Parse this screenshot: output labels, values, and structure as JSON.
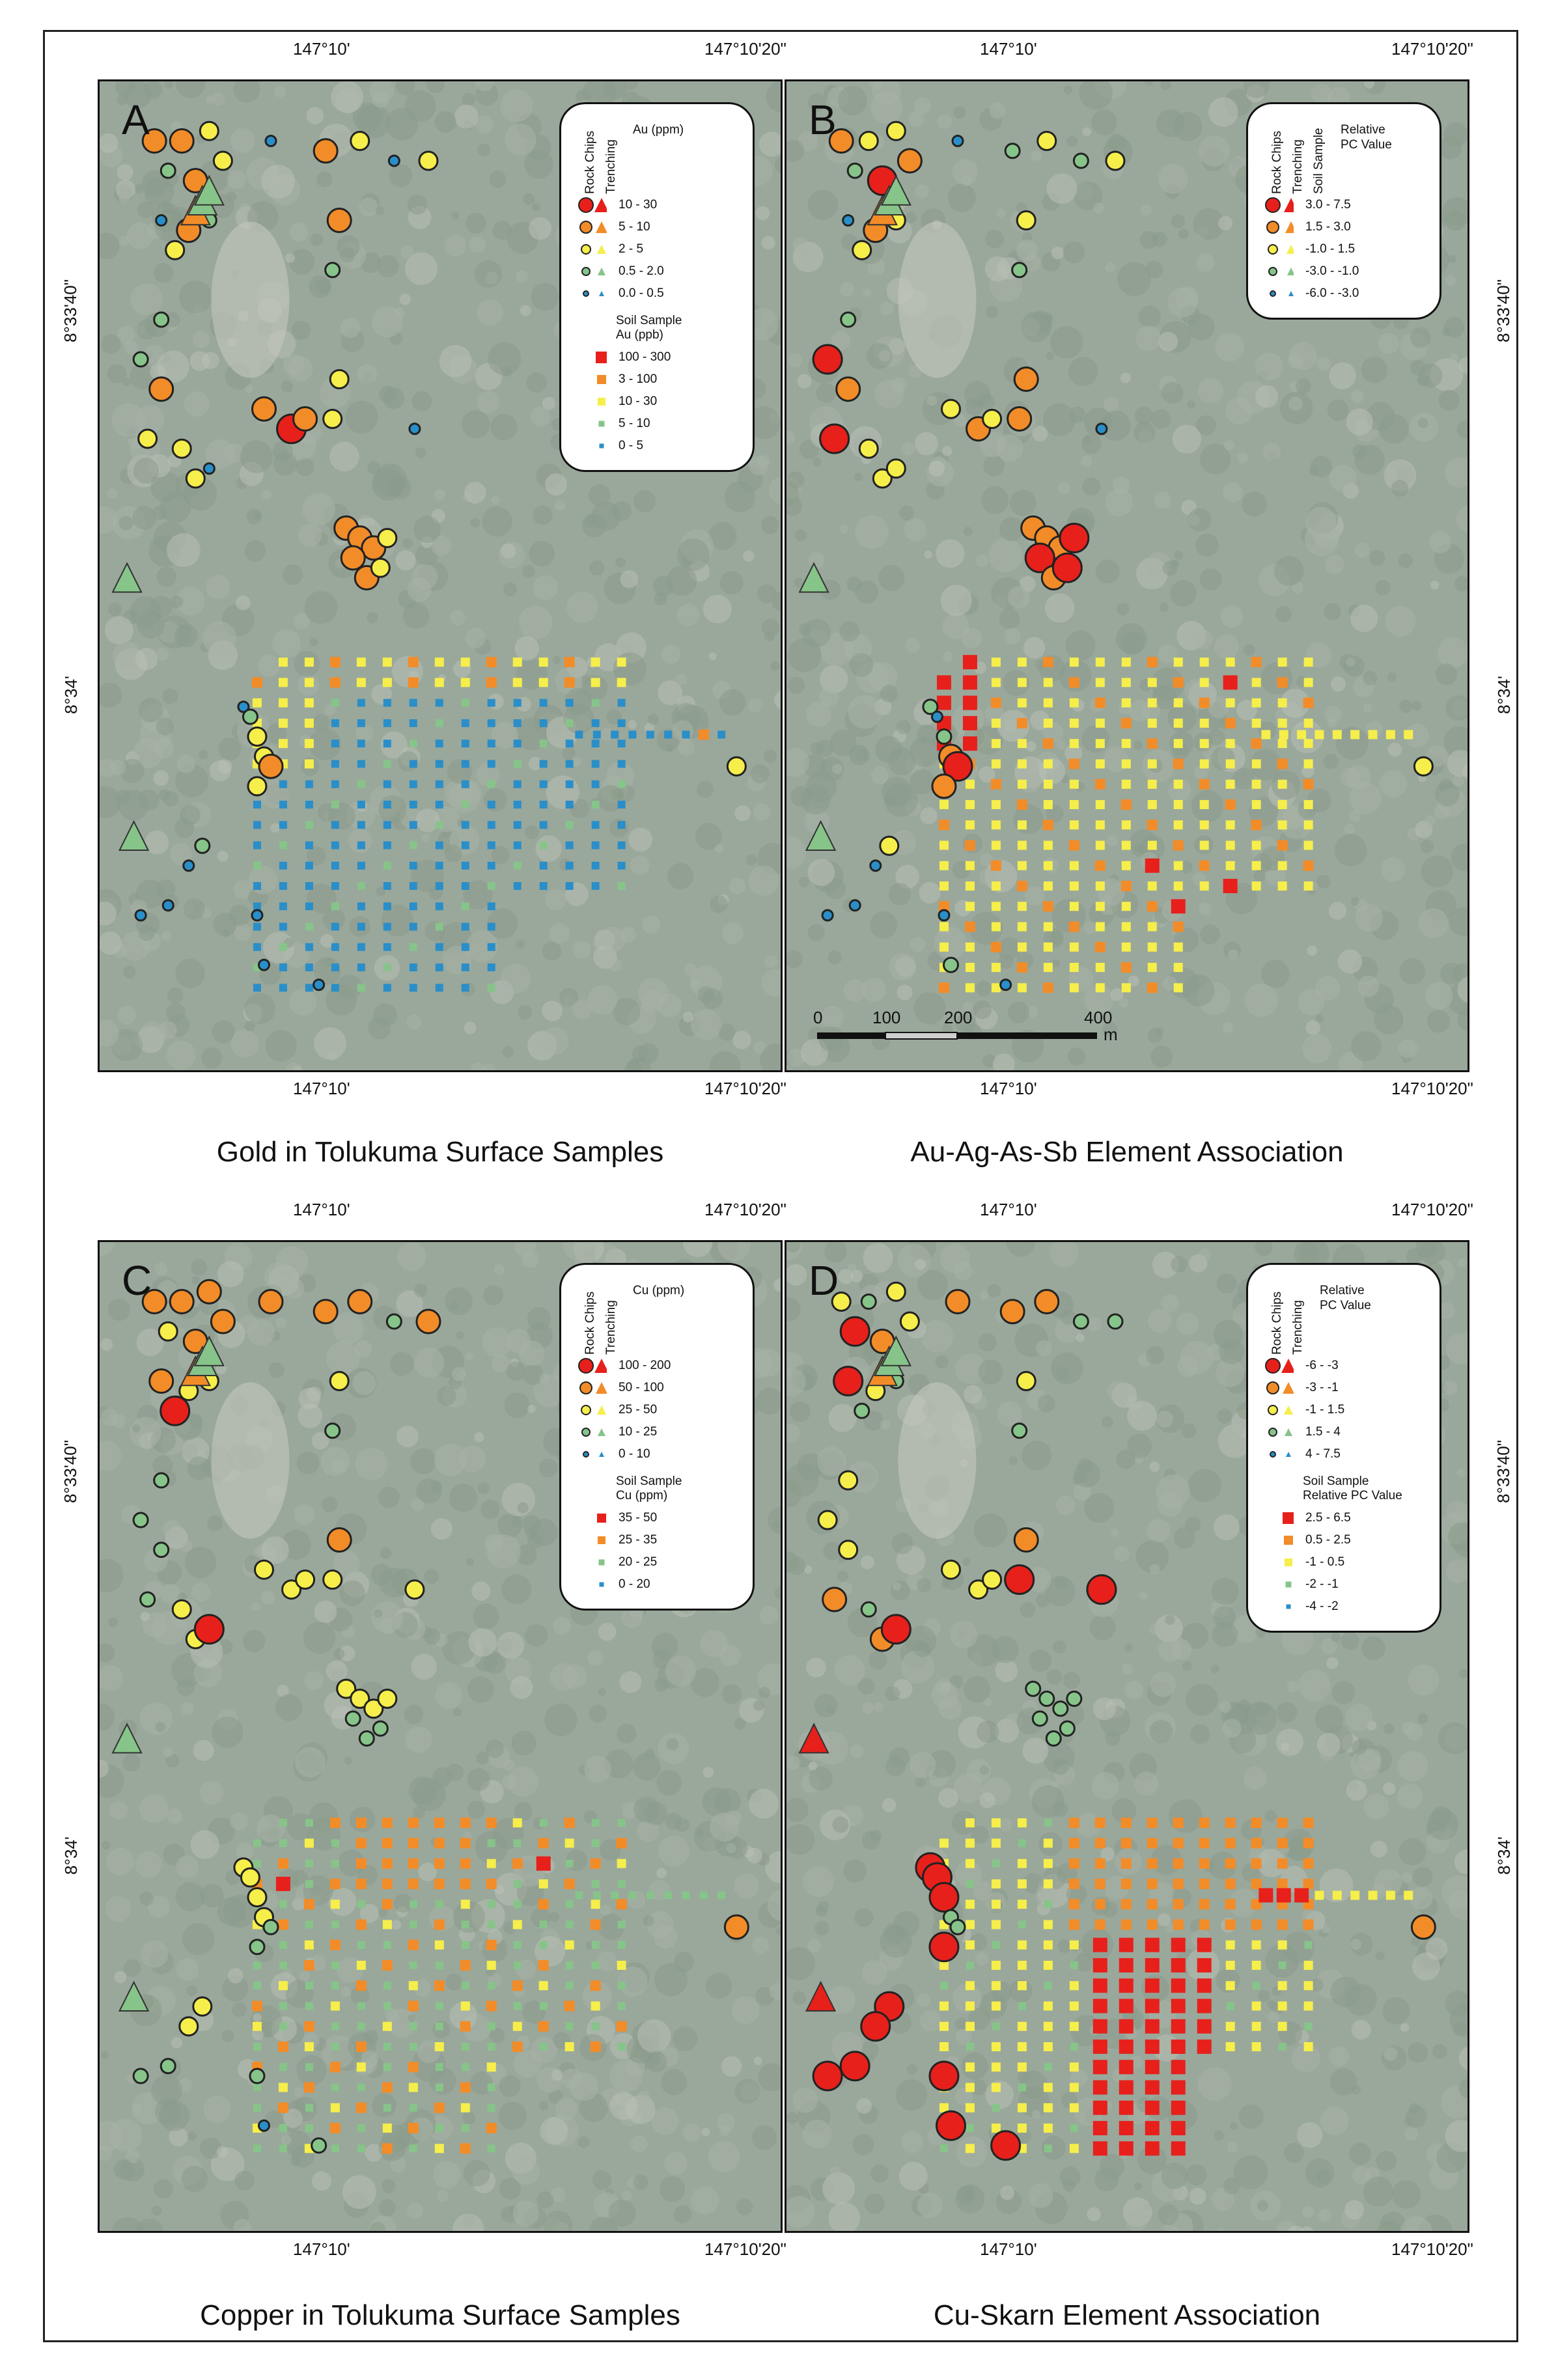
{
  "panels": [
    {
      "letter": "A",
      "caption": "Gold in Tolukuma Surface Samples",
      "legend": {
        "heads": [
          "Rock Chips",
          "Trenching"
        ],
        "title": "Au (ppm)",
        "classes": [
          "10 - 30",
          "5 - 10",
          "2 - 5",
          "0.5 - 2.0",
          "0.0 - 0.5"
        ],
        "soil_title": "Soil Sample\nAu (ppb)",
        "soil_classes": [
          "100 - 300",
          "3 - 100",
          "10 - 30",
          "5 - 10",
          "0 - 5"
        ]
      }
    },
    {
      "letter": "B",
      "caption": "Au-Ag-As-Sb Element Association",
      "legend": {
        "heads": [
          "Rock Chips",
          "Trenching",
          "Soil Sample"
        ],
        "title": "Relative\nPC Value",
        "classes": [
          "3.0 - 7.5",
          "1.5 - 3.0",
          "-1.0 - 1.5",
          "-3.0 - -1.0",
          "-6.0 - -3.0"
        ]
      }
    },
    {
      "letter": "C",
      "caption": "Copper in Tolukuma Surface Samples",
      "legend": {
        "heads": [
          "Rock Chips",
          "Trenching"
        ],
        "title": "Cu (ppm)",
        "classes": [
          "100 - 200",
          "50 - 100",
          "25 - 50",
          "10 - 25",
          "0 - 10"
        ],
        "soil_title": "Soil Sample\nCu (ppm)",
        "soil_classes": [
          "35 - 50",
          "25 - 35",
          "20 - 25",
          "0 - 20"
        ]
      }
    },
    {
      "letter": "D",
      "caption": "Cu-Skarn Element Association",
      "legend": {
        "heads": [
          "Rock Chips",
          "Trenching"
        ],
        "title": "Relative\nPC Value",
        "classes": [
          "-6 - -3",
          "-3 - -1",
          "-1 - 1.5",
          "1.5 - 4",
          "4 - 7.5"
        ],
        "soil_title": "Soil Sample\nRelative PC Value",
        "soil_classes": [
          "2.5 - 6.5",
          "0.5 - 2.5",
          "-1 - 0.5",
          "-2 - -1",
          "-4 - -2"
        ]
      }
    }
  ],
  "coords": {
    "lon_left": "147°10'",
    "lon_right": "147°10'20\"",
    "lat_top": "8°33'40\"",
    "lat_bottom": "8°34'"
  },
  "scalebar": {
    "labels": [
      "0",
      "100",
      "200",
      "400"
    ],
    "unit": "m"
  },
  "class_colors": [
    "#e8201c",
    "#f28c28",
    "#f6ee4a",
    "#86c48a",
    "#2a8fc8"
  ]
}
